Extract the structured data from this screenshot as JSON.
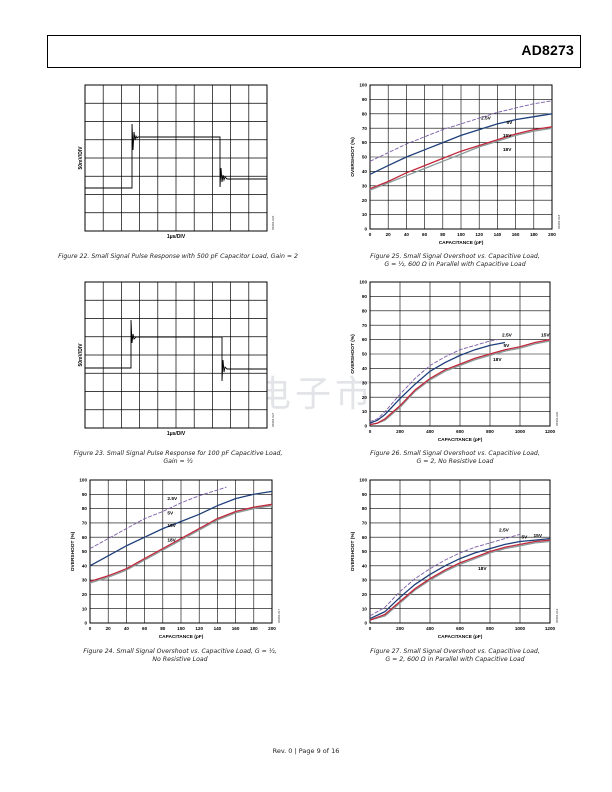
{
  "header": {
    "title": "AD8273"
  },
  "footer": {
    "text": "Rev. 0 | Page 9 of 16"
  },
  "watermark": {
    "text": "维库电子市场网"
  },
  "colors": {
    "c2_5V": "#7b5aa6",
    "c5V": "#1f3f7a",
    "c15V": "#c0283a",
    "c18V": "#8a9a9a"
  },
  "figures": {
    "fig22": {
      "caption": "Figure 22. Small Signal Pulse Response with 500 pF Capacitor Load, Gain = 2",
      "ylabel": "50mV/DIV",
      "xlabel": "1μs/DIV",
      "code": "06984-026"
    },
    "fig23": {
      "caption1": "Figure 23. Small Signal Pulse Response for 100 pF Capacitive Load,",
      "caption2": "Gain = ½",
      "ylabel": "50mV/DIV",
      "xlabel": "1μs/DIV",
      "code": "06984-027"
    },
    "fig24": {
      "caption1": "Figure 24. Small Signal Overshoot vs. Capacitive Load, G = ½,",
      "caption2": "No Resistive Load",
      "code": "06984-017"
    },
    "fig25": {
      "caption1": "Figure 25. Small Signal Overshoot vs. Capacitive Load,",
      "caption2": "G = ½, 600 Ω in Parallel with Capacitive Load",
      "code": "06984-018"
    },
    "fig26": {
      "caption1": "Figure 26. Small Signal Overshoot vs. Capacitive Load,",
      "caption2": "G = 2, No Resistive Load",
      "code": "06984-020"
    },
    "fig27": {
      "caption1": "Figure 27. Small Signal Overshoot vs. Capacitive Load,",
      "caption2": "G = 2, 600 Ω in Parallel with Capacitive Load",
      "code": "06984-019"
    }
  },
  "chart_data": [
    {
      "id": "fig24",
      "type": "line",
      "xlabel": "CAPACITANCE (pF)",
      "ylabel": "OVERSHOOT (%)",
      "xlim": [
        0,
        200
      ],
      "ylim": [
        0,
        100
      ],
      "xticks": [
        0,
        20,
        40,
        60,
        80,
        100,
        120,
        140,
        160,
        180,
        200
      ],
      "yticks": [
        0,
        10,
        20,
        30,
        40,
        50,
        60,
        70,
        80,
        90,
        100
      ],
      "grid": true,
      "series": [
        {
          "name": "2.5V",
          "x": [
            0,
            20,
            40,
            60,
            80,
            100,
            120,
            140,
            150
          ],
          "y": [
            52,
            59,
            66,
            73,
            78,
            84,
            89,
            93,
            95
          ]
        },
        {
          "name": "5V",
          "x": [
            0,
            20,
            40,
            60,
            80,
            100,
            120,
            140,
            160,
            180,
            200
          ],
          "y": [
            40,
            47,
            54,
            60,
            66,
            71,
            76,
            82,
            87,
            90,
            92
          ]
        },
        {
          "name": "15V",
          "x": [
            0,
            20,
            40,
            60,
            80,
            100,
            120,
            140,
            160,
            180,
            200
          ],
          "y": [
            29,
            33,
            38,
            45,
            52,
            59,
            66,
            73,
            78,
            81,
            83
          ]
        },
        {
          "name": "18V",
          "x": [
            0,
            20,
            40,
            60,
            80,
            100,
            120,
            140,
            160,
            180,
            200
          ],
          "y": [
            28,
            32,
            37,
            44,
            51,
            58,
            65,
            72,
            77,
            80,
            82
          ]
        }
      ],
      "labels": [
        {
          "text": "2.5V",
          "x": 85,
          "y": 86
        },
        {
          "text": "5V",
          "x": 85,
          "y": 76
        },
        {
          "text": "15V",
          "x": 85,
          "y": 67
        },
        {
          "text": "18V",
          "x": 85,
          "y": 57
        }
      ]
    },
    {
      "id": "fig25",
      "type": "line",
      "xlabel": "CAPACITANCE (pF)",
      "ylabel": "OVERSHOOT (%)",
      "xlim": [
        0,
        200
      ],
      "ylim": [
        0,
        100
      ],
      "xticks": [
        0,
        20,
        40,
        60,
        80,
        100,
        120,
        140,
        160,
        180,
        200
      ],
      "yticks": [
        0,
        10,
        20,
        30,
        40,
        50,
        60,
        70,
        80,
        90,
        100
      ],
      "grid": true,
      "series": [
        {
          "name": "2.5V",
          "x": [
            0,
            20,
            40,
            60,
            80,
            100,
            120,
            140,
            160,
            180,
            200
          ],
          "y": [
            47,
            53,
            59,
            64,
            69,
            73,
            77,
            81,
            84,
            87,
            89
          ]
        },
        {
          "name": "5V",
          "x": [
            0,
            20,
            40,
            60,
            80,
            100,
            120,
            140,
            160,
            180,
            200
          ],
          "y": [
            38,
            44,
            50,
            55,
            60,
            65,
            69,
            73,
            76,
            78,
            80
          ]
        },
        {
          "name": "15V",
          "x": [
            0,
            20,
            40,
            60,
            80,
            100,
            120,
            140,
            160,
            180,
            200
          ],
          "y": [
            28,
            33,
            39,
            44,
            49,
            54,
            58,
            62,
            66,
            69,
            71
          ]
        },
        {
          "name": "18V",
          "x": [
            0,
            20,
            40,
            60,
            80,
            100,
            120,
            140,
            160,
            180,
            200
          ],
          "y": [
            27,
            32,
            37,
            42,
            47,
            52,
            57,
            61,
            65,
            68,
            70
          ]
        }
      ],
      "labels": [
        {
          "text": "2.5V",
          "x": 122,
          "y": 76
        },
        {
          "text": "5V",
          "x": 150,
          "y": 73
        },
        {
          "text": "15V",
          "x": 146,
          "y": 64
        },
        {
          "text": "18V",
          "x": 146,
          "y": 54
        }
      ]
    },
    {
      "id": "fig26",
      "type": "line",
      "xlabel": "CAPACITANCE (pF)",
      "ylabel": "OVERSHOOT (%)",
      "xlim": [
        0,
        1200
      ],
      "ylim": [
        0,
        100
      ],
      "xticks": [
        0,
        200,
        400,
        600,
        800,
        1000,
        1200
      ],
      "yticks": [
        0,
        10,
        20,
        30,
        40,
        50,
        60,
        70,
        80,
        90,
        100
      ],
      "grid": true,
      "series": [
        {
          "name": "2.5V",
          "x": [
            0,
            50,
            100,
            200,
            300,
            400,
            500,
            600,
            700,
            800,
            850
          ],
          "y": [
            3,
            5,
            10,
            22,
            33,
            42,
            48,
            53,
            56,
            59,
            60
          ]
        },
        {
          "name": "5V",
          "x": [
            0,
            50,
            100,
            200,
            300,
            400,
            500,
            600,
            700,
            800,
            900
          ],
          "y": [
            2,
            4,
            8,
            19,
            29,
            38,
            44,
            49,
            53,
            56,
            58
          ]
        },
        {
          "name": "15V",
          "x": [
            0,
            50,
            100,
            200,
            300,
            400,
            500,
            600,
            700,
            800,
            900,
            1000,
            1100,
            1200
          ],
          "y": [
            1,
            2,
            5,
            14,
            25,
            33,
            39,
            43,
            47,
            50,
            53,
            55,
            58,
            60
          ]
        },
        {
          "name": "18V",
          "x": [
            0,
            50,
            100,
            200,
            300,
            400,
            500,
            600,
            700,
            800,
            900,
            1000,
            1100,
            1200
          ],
          "y": [
            1,
            2,
            4,
            13,
            24,
            32,
            38,
            42,
            46,
            49,
            52,
            54,
            57,
            59
          ]
        }
      ],
      "labels": [
        {
          "text": "2.5V",
          "x": 880,
          "y": 62
        },
        {
          "text": "5V",
          "x": 890,
          "y": 55
        },
        {
          "text": "15V",
          "x": 1140,
          "y": 62
        },
        {
          "text": "18V",
          "x": 820,
          "y": 45
        }
      ]
    },
    {
      "id": "fig27",
      "type": "line",
      "xlabel": "CAPACITANCE (pF)",
      "ylabel": "OVERSHOOT (%)",
      "xlim": [
        0,
        1200
      ],
      "ylim": [
        0,
        100
      ],
      "xticks": [
        0,
        200,
        400,
        600,
        800,
        1000,
        1200
      ],
      "yticks": [
        0,
        10,
        20,
        30,
        40,
        50,
        60,
        70,
        80,
        90,
        100
      ],
      "grid": true,
      "series": [
        {
          "name": "2.5V",
          "x": [
            0,
            100,
            200,
            300,
            400,
            500,
            600,
            700,
            800,
            900,
            1000
          ],
          "y": [
            5,
            11,
            22,
            31,
            38,
            44,
            49,
            53,
            56,
            59,
            62
          ]
        },
        {
          "name": "5V",
          "x": [
            0,
            100,
            200,
            300,
            400,
            500,
            600,
            700,
            800,
            900,
            1000,
            1100,
            1200
          ],
          "y": [
            3,
            8,
            18,
            27,
            34,
            40,
            45,
            49,
            52,
            55,
            57,
            58,
            59
          ]
        },
        {
          "name": "15V",
          "x": [
            0,
            100,
            200,
            300,
            400,
            500,
            600,
            700,
            800,
            900,
            1000,
            1100,
            1200
          ],
          "y": [
            2,
            6,
            15,
            24,
            31,
            37,
            42,
            46,
            50,
            53,
            55,
            57,
            58
          ]
        },
        {
          "name": "18V",
          "x": [
            0,
            100,
            200,
            300,
            400,
            500,
            600,
            700,
            800,
            900,
            1000,
            1100,
            1200
          ],
          "y": [
            2,
            5,
            14,
            23,
            30,
            36,
            41,
            45,
            49,
            52,
            54,
            56,
            57
          ]
        }
      ],
      "labels": [
        {
          "text": "2.5V",
          "x": 860,
          "y": 64
        },
        {
          "text": "5V",
          "x": 1010,
          "y": 59
        },
        {
          "text": "15V",
          "x": 1090,
          "y": 60
        },
        {
          "text": "18V",
          "x": 720,
          "y": 37
        }
      ]
    }
  ]
}
